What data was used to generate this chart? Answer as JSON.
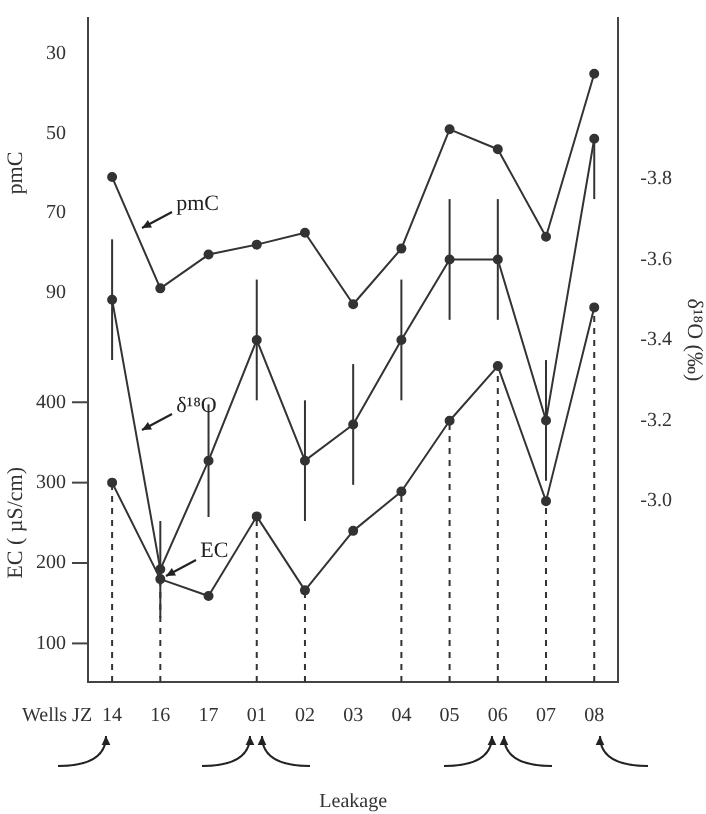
{
  "chart_data": {
    "type": "line",
    "xlabel": "Wells JZ",
    "ylabel": "pmC",
    "y2label": "δ¹⁸O (‰)",
    "y3label": "EC ( µS/cm)",
    "categories": [
      "14",
      "16",
      "17",
      "01",
      "02",
      "03",
      "04",
      "05",
      "06",
      "07",
      "08"
    ],
    "ylim": [
      188,
      21
    ],
    "yticks": [
      30,
      50,
      70,
      90
    ],
    "y3lim": [
      52,
      878
    ],
    "y3ticks": [
      100,
      200,
      300,
      400
    ],
    "y2lim": [
      -2.55,
      -4.2
    ],
    "y2ticks": [
      -3.8,
      -3.6,
      -3.4,
      -3.2,
      {
        "value": -3,
        "label": "-3.0"
      }
    ],
    "series": [
      {
        "name": "pmC",
        "color": "#333333",
        "values": [
          61,
          89,
          80.5,
          78,
          75,
          93,
          79,
          49,
          54,
          76,
          35
        ]
      },
      {
        "name": "δ¹⁸O",
        "color": "#333333",
        "axis": "y2",
        "values": [
          -3.5,
          -2.83,
          -3.1,
          -3.4,
          -3.1,
          -3.19,
          -3.4,
          -3.6,
          -3.6,
          -3.2,
          -3.9
        ],
        "errors": [
          0.15,
          0.12,
          0.14,
          0.15,
          0.15,
          0.15,
          0.15,
          0.15,
          0.15,
          0.15,
          [
            -3.9,
            -3.75
          ]
        ]
      },
      {
        "name": "EC",
        "color": "#333333",
        "axis": "y3",
        "values": [
          300,
          180,
          159,
          258,
          166,
          240,
          289,
          377,
          445,
          277,
          518
        ]
      }
    ],
    "ref_lines": [
      {
        "axis": "x",
        "value": "14",
        "line_style": "dashed"
      },
      {
        "axis": "x",
        "value": "16",
        "line_style": "dashed"
      },
      {
        "axis": "x",
        "value": "01",
        "line_style": "dashed"
      },
      {
        "axis": "x",
        "value": "02",
        "line_style": "dashed"
      },
      {
        "axis": "x",
        "value": "04",
        "line_style": "dashed"
      },
      {
        "axis": "x",
        "value": "05",
        "line_style": "dashed"
      },
      {
        "axis": "x",
        "value": "06",
        "line_style": "dashed"
      },
      {
        "axis": "x",
        "value": "07",
        "line_style": "dashed"
      },
      {
        "axis": "x",
        "value": "08",
        "line_style": "dashed"
      }
    ],
    "annotations": [
      "Leakage"
    ],
    "marker": "circle"
  }
}
